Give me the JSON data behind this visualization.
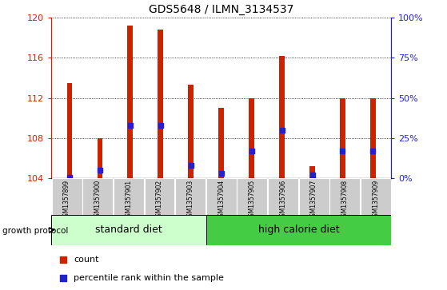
{
  "title": "GDS5648 / ILMN_3134537",
  "samples": [
    "GSM1357899",
    "GSM1357900",
    "GSM1357901",
    "GSM1357902",
    "GSM1357903",
    "GSM1357904",
    "GSM1357905",
    "GSM1357906",
    "GSM1357907",
    "GSM1357908",
    "GSM1357909"
  ],
  "count_values": [
    113.5,
    108.0,
    119.2,
    118.8,
    113.3,
    111.0,
    112.0,
    116.2,
    105.2,
    112.0,
    112.0
  ],
  "percentile_values": [
    0.5,
    5.0,
    33.0,
    33.0,
    8.0,
    3.0,
    17.0,
    30.0,
    2.0,
    17.0,
    17.0
  ],
  "bar_bottom": 104.0,
  "ylim_left": [
    104,
    120
  ],
  "ylim_right": [
    0,
    100
  ],
  "yticks_left": [
    104,
    108,
    112,
    116,
    120
  ],
  "yticks_right": [
    0,
    25,
    50,
    75,
    100
  ],
  "yticklabels_right": [
    "0%",
    "25%",
    "50%",
    "75%",
    "100%"
  ],
  "standard_diet_count": 5,
  "high_calorie_diet_count": 6,
  "bar_color": "#cc2200",
  "percentile_color": "#2222cc",
  "left_tick_color": "#cc2200",
  "right_tick_color": "#2222cc",
  "standard_diet_color": "#ccffcc",
  "high_calorie_diet_color": "#44cc44",
  "growth_protocol_label": "growth protocol",
  "standard_diet_label": "standard diet",
  "high_calorie_diet_label": "high calorie diet",
  "legend_count_label": "count",
  "legend_percentile_label": "percentile rank within the sample",
  "bar_width": 0.18
}
